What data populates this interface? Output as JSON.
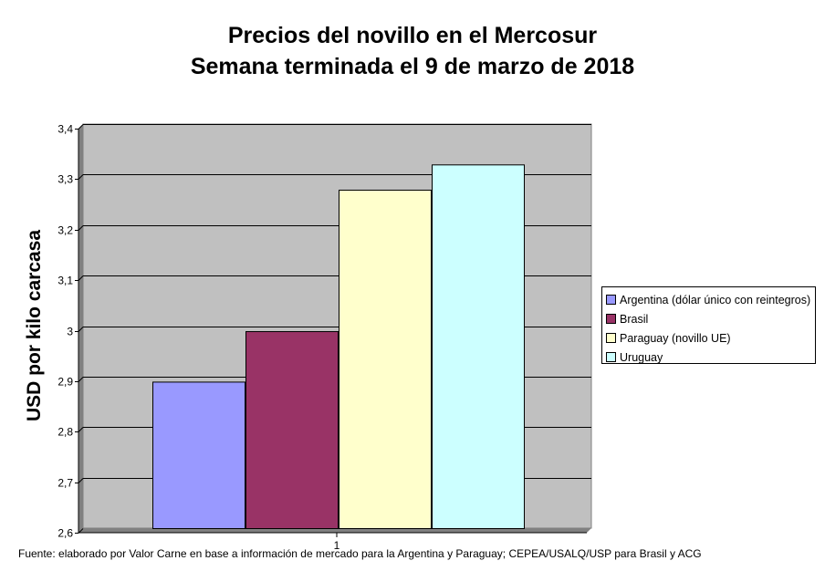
{
  "chart_data": {
    "type": "bar",
    "title": "Precios del novillo en el Mercosur",
    "subtitle": "Semana terminada el 9 de marzo de 2018",
    "ylabel": "USD por kilo carcasa",
    "xlabel": "",
    "categories": [
      "1"
    ],
    "ylim": [
      2.6,
      3.4
    ],
    "yticks": [
      "2,6",
      "2,7",
      "2,8",
      "2,9",
      "3",
      "3,1",
      "3,2",
      "3,3",
      "3,4"
    ],
    "grid": true,
    "legend_position": "right",
    "series": [
      {
        "name": "Argentina (dólar único con reintegros)",
        "values": [
          2.89
        ],
        "color": "#9999ff"
      },
      {
        "name": "Brasil",
        "values": [
          2.99
        ],
        "color": "#993366"
      },
      {
        "name": "Paraguay (novillo UE)",
        "values": [
          3.27
        ],
        "color": "#ffffcc"
      },
      {
        "name": "Uruguay",
        "values": [
          3.32
        ],
        "color": "#ccffff"
      }
    ],
    "plot_background": "#c0c0c0"
  },
  "source_note": "Fuente: elaborado por Valor Carne en base a información de mercado para la Argentina y Paraguay; CEPEA/USALQ/USP para Brasil y ACG"
}
